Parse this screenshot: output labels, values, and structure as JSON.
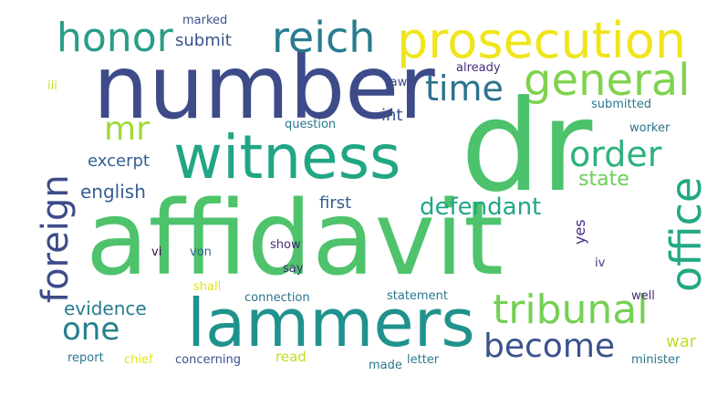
{
  "words": {
    "dr": "dr",
    "affidavit": "affidavit",
    "number": "number",
    "lammers": "lammers",
    "witness": "witness",
    "prosecution": "prosecution",
    "reich": "reich",
    "honor": "honor",
    "general": "general",
    "time": "time",
    "office": "office",
    "foreign": "foreign",
    "tribunal": "tribunal",
    "become": "become",
    "order": "order",
    "mr": "mr",
    "one": "one",
    "defendant": "defendant",
    "evidence": "evidence",
    "state": "state",
    "english": "english",
    "excerpt": "excerpt",
    "submit": "submit",
    "int": "int",
    "first": "first",
    "war": "war",
    "yes": "yes",
    "marked": "marked",
    "already": "already",
    "law": "law",
    "iii": "iii",
    "question": "question",
    "submitted": "submitted",
    "worker": "worker",
    "vi": "vi",
    "von": "von",
    "show": "show",
    "say": "say",
    "shall": "shall",
    "iv": "iv",
    "connection": "connection",
    "statement": "statement",
    "well": "well",
    "report": "report",
    "chief": "chief",
    "concerning": "concerning",
    "read": "read",
    "made": "made",
    "letter": "letter",
    "minister": "minister"
  },
  "palette": {
    "background": "#ffffff"
  }
}
